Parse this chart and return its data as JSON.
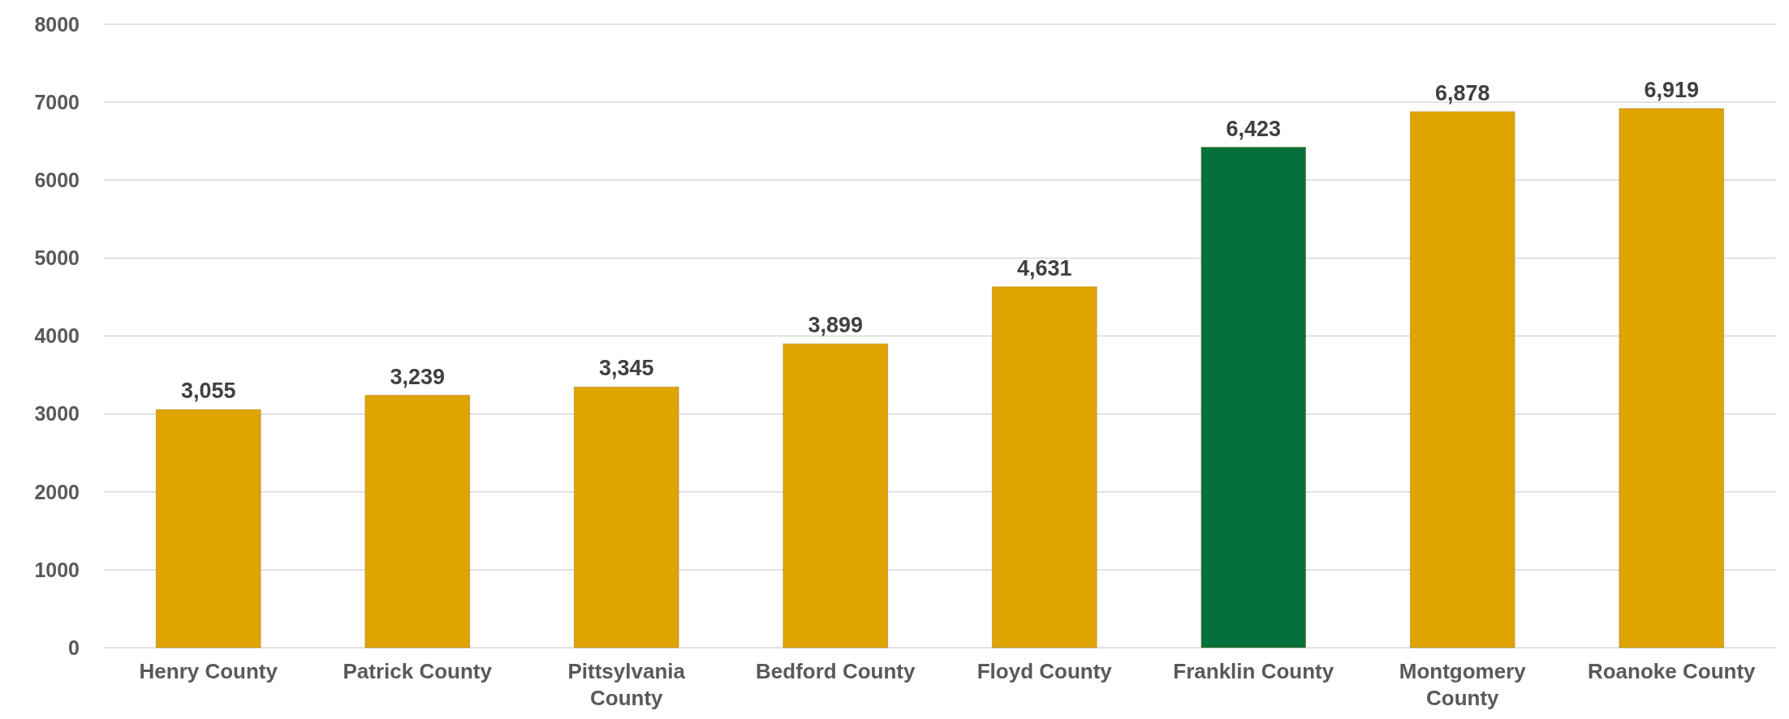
{
  "chart_data": {
    "type": "bar",
    "categories": [
      "Henry County",
      "Patrick County",
      "Pittsylvania County",
      "Bedford County",
      "Floyd County",
      "Franklin County",
      "Montgomery County",
      "Roanoke County"
    ],
    "values": [
      3055,
      3239,
      3345,
      3899,
      4631,
      6423,
      6878,
      6919
    ],
    "colors": [
      "#e0a400",
      "#e0a400",
      "#e0a400",
      "#e0a400",
      "#e0a400",
      "#06703c",
      "#e0a400",
      "#e0a400"
    ],
    "ylim": [
      0,
      8000
    ],
    "yticks": [
      0,
      1000,
      2000,
      3000,
      4000,
      5000,
      6000,
      7000,
      8000
    ],
    "value_labels": [
      "3,055",
      "3,239",
      "3,345",
      "3,899",
      "4,631",
      "6,423",
      "6,878",
      "6,919"
    ],
    "grid": "y"
  }
}
